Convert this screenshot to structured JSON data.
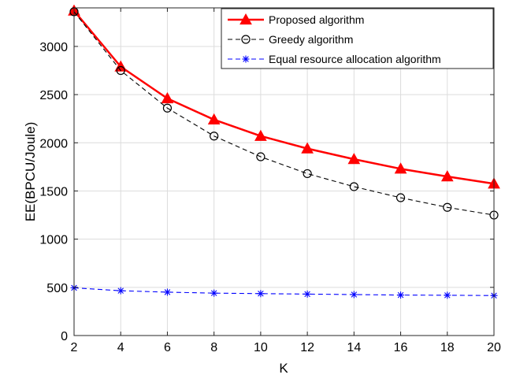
{
  "chart_data": {
    "type": "line",
    "title": "",
    "xlabel": "K",
    "ylabel": "EE(BPCU/Joule)",
    "x": [
      2,
      4,
      6,
      8,
      10,
      12,
      14,
      16,
      18,
      20
    ],
    "xlim": [
      2,
      20
    ],
    "ylim": [
      0,
      3400
    ],
    "xticks": [
      2,
      4,
      6,
      8,
      10,
      12,
      14,
      16,
      18,
      20
    ],
    "yticks": [
      0,
      500,
      1000,
      1500,
      2000,
      2500,
      3000
    ],
    "grid": true,
    "legend_location": "top-right",
    "series": [
      {
        "name": "Proposed algorithm",
        "color": "#ff0000",
        "line_style": "solid",
        "marker": "triangle",
        "values": [
          3370,
          2790,
          2460,
          2240,
          2070,
          1940,
          1830,
          1730,
          1650,
          1575
        ]
      },
      {
        "name": "Greedy algorithm",
        "color": "#000000",
        "line_style": "dashed",
        "marker": "circle",
        "values": [
          3360,
          2750,
          2360,
          2070,
          1855,
          1680,
          1545,
          1430,
          1330,
          1250
        ]
      },
      {
        "name": "Equal resource allocation algorithm",
        "color": "#0000ff",
        "line_style": "dashed",
        "marker": "asterisk",
        "values": [
          495,
          465,
          450,
          440,
          435,
          430,
          425,
          420,
          418,
          415
        ]
      }
    ]
  }
}
